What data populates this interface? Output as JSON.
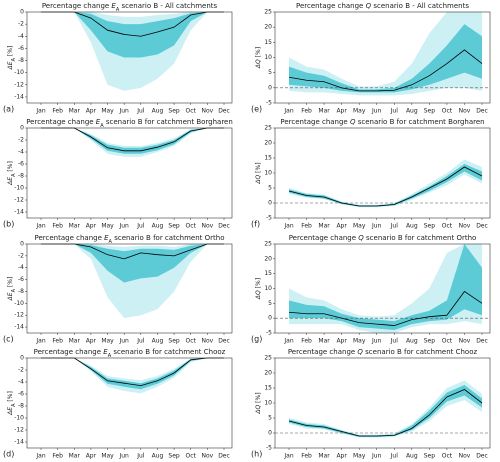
{
  "chart_data": [
    {
      "type": "line",
      "panel": "(a)",
      "title": {
        "pre": "Percentage change ",
        "symbol": "E",
        "sub": "A",
        "post": " scenario B - All catchments"
      },
      "ylabel": {
        "symbol": "ΔE",
        "sub": "A",
        "post": " [%]"
      },
      "categories": [
        "Jan",
        "Feb",
        "Mar",
        "Apr",
        "May",
        "Jun",
        "Jul",
        "Aug",
        "Sep",
        "Oct",
        "Nov",
        "Dec"
      ],
      "values": [
        0,
        0,
        0,
        -1,
        -3,
        -3.7,
        -4,
        -3.3,
        -2.5,
        -0.5,
        0,
        0
      ],
      "inner_band": {
        "lower": [
          0,
          0,
          0,
          -3,
          -6.5,
          -7.5,
          -7.5,
          -7,
          -5.5,
          -1.5,
          0,
          0
        ],
        "upper": [
          0,
          0,
          0,
          -0.3,
          -1.5,
          -2,
          -2,
          -1.5,
          -1,
          -0.2,
          0,
          0
        ]
      },
      "outer_band": {
        "lower": [
          0,
          0,
          0,
          -5,
          -12,
          -13,
          -12.5,
          -11,
          -8.5,
          -3,
          0,
          0
        ],
        "upper": [
          0,
          0,
          0,
          0,
          -0.5,
          -0.8,
          -0.8,
          -0.5,
          -0.3,
          0,
          0,
          0
        ]
      },
      "ylim": [
        -15,
        0
      ],
      "yticks": [
        0,
        -2,
        -4,
        -6,
        -8,
        -10,
        -12,
        -14
      ],
      "color": "#000000",
      "inner_color": "#5ccbd6",
      "outer_color": "#ccf0f4"
    },
    {
      "type": "line",
      "panel": "(b)",
      "title": {
        "pre": "Percentage change ",
        "symbol": "E",
        "sub": "A",
        "post": " scenario B for catchment Borgharen"
      },
      "ylabel": {
        "symbol": "ΔE",
        "sub": "A",
        "post": " [%]"
      },
      "categories": [
        "Jan",
        "Feb",
        "Mar",
        "Apr",
        "May",
        "Jun",
        "Jul",
        "Aug",
        "Sep",
        "Oct",
        "Nov",
        "Dec"
      ],
      "values": [
        0,
        0,
        0,
        -1.5,
        -3.3,
        -3.8,
        -3.8,
        -3.2,
        -2.3,
        -0.5,
        0,
        0
      ],
      "inner_band": {
        "lower": [
          0,
          0,
          0,
          -1.8,
          -3.8,
          -4.3,
          -4.3,
          -3.7,
          -2.7,
          -0.7,
          0,
          0
        ],
        "upper": [
          0,
          0,
          0,
          -1.2,
          -2.8,
          -3.3,
          -3.3,
          -2.8,
          -2,
          -0.3,
          0,
          0
        ]
      },
      "outer_band": {
        "lower": [
          0,
          0,
          0,
          -2,
          -4.3,
          -4.8,
          -4.8,
          -4,
          -3,
          -0.9,
          0,
          0
        ],
        "upper": [
          0,
          0,
          0,
          -1,
          -2.5,
          -3,
          -3,
          -2.5,
          -1.7,
          -0.2,
          0,
          0
        ]
      },
      "ylim": [
        -15,
        0
      ],
      "yticks": [
        0,
        -2,
        -4,
        -6,
        -8,
        -10,
        -12,
        -14
      ],
      "color": "#000000",
      "inner_color": "#5ccbd6",
      "outer_color": "#ccf0f4"
    },
    {
      "type": "line",
      "panel": "(c)",
      "title": {
        "pre": "Percentage change ",
        "symbol": "E",
        "sub": "A",
        "post": " scenario B for catchment Ortho"
      },
      "ylabel": {
        "symbol": "ΔE",
        "sub": "A",
        "post": " [%]"
      },
      "categories": [
        "Jan",
        "Feb",
        "Mar",
        "Apr",
        "May",
        "Jun",
        "Jul",
        "Aug",
        "Sep",
        "Oct",
        "Nov",
        "Dec"
      ],
      "values": [
        0,
        0,
        0,
        -0.5,
        -1.8,
        -2.5,
        -1.5,
        -1.8,
        -2,
        -1,
        0,
        0
      ],
      "inner_band": {
        "lower": [
          0,
          0,
          0,
          -1.5,
          -4.5,
          -6.5,
          -5.8,
          -5.5,
          -4,
          -1.5,
          0,
          0
        ],
        "upper": [
          0,
          0,
          0,
          -0.2,
          -0.8,
          -1.2,
          -0.8,
          -0.8,
          -1,
          -0.3,
          0,
          0
        ]
      },
      "outer_band": {
        "lower": [
          0,
          0,
          0,
          -2.5,
          -9,
          -12.5,
          -12,
          -11,
          -8,
          -3,
          0,
          0
        ],
        "upper": [
          0,
          0,
          0,
          0,
          -0.3,
          -0.5,
          -0.3,
          -0.3,
          -0.5,
          0,
          0,
          0
        ]
      },
      "ylim": [
        -15,
        0
      ],
      "yticks": [
        0,
        -2,
        -4,
        -6,
        -8,
        -10,
        -12,
        -14
      ],
      "color": "#000000",
      "inner_color": "#5ccbd6",
      "outer_color": "#ccf0f4"
    },
    {
      "type": "line",
      "panel": "(d)",
      "title": {
        "pre": "Percentage change ",
        "symbol": "E",
        "sub": "A",
        "post": " scenario B for catchment Chooz"
      },
      "ylabel": {
        "symbol": "ΔE",
        "sub": "A",
        "post": " [%]"
      },
      "categories": [
        "Jan",
        "Feb",
        "Mar",
        "Apr",
        "May",
        "Jun",
        "Jul",
        "Aug",
        "Sep",
        "Oct",
        "Nov",
        "Dec"
      ],
      "values": [
        0,
        0,
        0,
        -1.8,
        -3.8,
        -4.2,
        -4.6,
        -3.8,
        -2.5,
        -0.3,
        0,
        0
      ],
      "inner_band": {
        "lower": [
          0,
          0,
          0,
          -2,
          -4.3,
          -4.8,
          -5.2,
          -4.3,
          -2.9,
          -0.5,
          0,
          0
        ],
        "upper": [
          0,
          0,
          0,
          -1.5,
          -3.4,
          -3.8,
          -4.2,
          -3.4,
          -2.1,
          -0.2,
          0,
          0
        ]
      },
      "outer_band": {
        "lower": [
          0,
          0,
          0,
          -2.2,
          -4.8,
          -5.5,
          -5.9,
          -4.8,
          -3.3,
          -0.7,
          0,
          0
        ],
        "upper": [
          0,
          0,
          0,
          -1.3,
          -3,
          -3.4,
          -3.7,
          -3,
          -1.8,
          -0.1,
          0,
          0
        ]
      },
      "ylim": [
        -15,
        0
      ],
      "yticks": [
        0,
        -2,
        -4,
        -6,
        -8,
        -10,
        -12,
        -14
      ],
      "color": "#000000",
      "inner_color": "#5ccbd6",
      "outer_color": "#ccf0f4"
    },
    {
      "type": "line",
      "panel": "(e)",
      "title": {
        "pre": "Percentage change ",
        "symbol": "Q",
        "post": " scenario B - All catchments"
      },
      "ylabel": {
        "symbol": "ΔQ",
        "post": " [%]"
      },
      "categories": [
        "Jan",
        "Feb",
        "Mar",
        "Apr",
        "May",
        "Jun",
        "Jul",
        "Aug",
        "Sep",
        "Oct",
        "Nov",
        "Dec"
      ],
      "values": [
        3.5,
        2.5,
        2,
        0,
        -1,
        -1,
        -0.8,
        1,
        4,
        8,
        12.5,
        8
      ],
      "inner_band": {
        "lower": [
          1,
          0.5,
          0,
          -1,
          -1.5,
          -1.5,
          -1.5,
          -0.5,
          1,
          3,
          5,
          3
        ],
        "upper": [
          7,
          5,
          4,
          1.5,
          -0.5,
          -0.5,
          0,
          3,
          8,
          14,
          21,
          17
        ]
      },
      "outer_band": {
        "lower": [
          -1,
          -1.5,
          -1.5,
          -2,
          -2.5,
          -2.5,
          -2.5,
          -2,
          -1,
          0,
          0,
          -1
        ],
        "upper": [
          10,
          7,
          6,
          3,
          0.5,
          0.5,
          2,
          8,
          18,
          25,
          25,
          25
        ]
      },
      "ylim": [
        -5,
        25
      ],
      "yticks": [
        -5,
        0,
        5,
        10,
        15,
        20,
        25
      ],
      "reference_line": 0,
      "color": "#000000",
      "inner_color": "#5ccbd6",
      "outer_color": "#ccf0f4"
    },
    {
      "type": "line",
      "panel": "(f)",
      "title": {
        "pre": "Percentage change ",
        "symbol": "Q",
        "post": " scenario B for catchment Borgharen"
      },
      "ylabel": {
        "symbol": "ΔQ",
        "post": " [%]"
      },
      "categories": [
        "Jan",
        "Feb",
        "Mar",
        "Apr",
        "May",
        "Jun",
        "Jul",
        "Aug",
        "Sep",
        "Oct",
        "Nov",
        "Dec"
      ],
      "values": [
        4,
        2.5,
        2,
        0,
        -1,
        -1,
        -0.5,
        2,
        5,
        8,
        12,
        9
      ],
      "inner_band": {
        "lower": [
          3.5,
          2,
          1.5,
          -0.3,
          -1.2,
          -1.2,
          -0.8,
          1.5,
          4,
          7,
          10.5,
          7.5
        ],
        "upper": [
          4.5,
          3,
          2.5,
          0.3,
          -0.8,
          -0.8,
          -0.2,
          2.5,
          5.5,
          9,
          13,
          10.5
        ]
      },
      "outer_band": {
        "lower": [
          3,
          1.8,
          1.3,
          -0.5,
          -1.4,
          -1.4,
          -1,
          1,
          3.5,
          6,
          9.5,
          6.5
        ],
        "upper": [
          5,
          3.3,
          2.8,
          0.5,
          -0.6,
          -0.6,
          0,
          3,
          6.5,
          10,
          14.5,
          12
        ]
      },
      "ylim": [
        -5,
        25
      ],
      "yticks": [
        -5,
        0,
        5,
        10,
        15,
        20,
        25
      ],
      "reference_line": 0,
      "color": "#000000",
      "inner_color": "#5ccbd6",
      "outer_color": "#ccf0f4"
    },
    {
      "type": "line",
      "panel": "(g)",
      "title": {
        "pre": "Percentage change ",
        "symbol": "Q",
        "post": " scenario B for catchment Ortho"
      },
      "ylabel": {
        "symbol": "ΔQ",
        "post": " [%]"
      },
      "categories": [
        "Jan",
        "Feb",
        "Mar",
        "Apr",
        "May",
        "Jun",
        "Jul",
        "Aug",
        "Sep",
        "Oct",
        "Nov",
        "Dec"
      ],
      "values": [
        2,
        1.5,
        1.5,
        0,
        -1.5,
        -2,
        -2.5,
        -0.5,
        0.5,
        1,
        9,
        5
      ],
      "inner_band": {
        "lower": [
          0,
          0,
          0,
          -1,
          -3,
          -3.5,
          -4,
          -2,
          -1,
          -0.5,
          3,
          1
        ],
        "upper": [
          6,
          4.5,
          4,
          1.5,
          0,
          -0.5,
          -1,
          1,
          2.5,
          6,
          25,
          17
        ]
      },
      "outer_band": {
        "lower": [
          -2,
          -2,
          -2,
          -2,
          -4,
          -5,
          -5,
          -3,
          -2,
          -2,
          -1,
          -2
        ],
        "upper": [
          10,
          7,
          6,
          3,
          1,
          0.5,
          1,
          5,
          10,
          22,
          25,
          25
        ]
      },
      "ylim": [
        -5,
        25
      ],
      "yticks": [
        -5,
        0,
        5,
        10,
        15,
        20,
        25
      ],
      "reference_line": 0,
      "color": "#000000",
      "inner_color": "#5ccbd6",
      "outer_color": "#ccf0f4"
    },
    {
      "type": "line",
      "panel": "(h)",
      "title": {
        "pre": "Percentage change ",
        "symbol": "Q",
        "post": " scenario B for catchment Chooz"
      },
      "ylabel": {
        "symbol": "ΔQ",
        "post": " [%]"
      },
      "categories": [
        "Jan",
        "Feb",
        "Mar",
        "Apr",
        "May",
        "Jun",
        "Jul",
        "Aug",
        "Sep",
        "Oct",
        "Nov",
        "Dec"
      ],
      "values": [
        4,
        2.5,
        2,
        0.5,
        -1,
        -1,
        -0.8,
        1.5,
        6,
        12,
        14.5,
        10
      ],
      "inner_band": {
        "lower": [
          3.5,
          2,
          1.5,
          0,
          -1.3,
          -1.3,
          -1,
          1,
          5,
          10.5,
          12.5,
          8.5
        ],
        "upper": [
          4.5,
          3,
          2.5,
          0.8,
          -0.8,
          -0.8,
          -0.5,
          2.5,
          7.5,
          13.5,
          16,
          11.5
        ]
      },
      "outer_band": {
        "lower": [
          3,
          1.5,
          1.2,
          -0.2,
          -1.5,
          -1.5,
          -1.3,
          0.5,
          4,
          9,
          11,
          7
        ],
        "upper": [
          5,
          3.5,
          3,
          1,
          -0.6,
          -0.6,
          -0.2,
          3,
          8.5,
          15,
          17.5,
          13
        ]
      },
      "ylim": [
        -5,
        25
      ],
      "yticks": [
        -5,
        0,
        5,
        10,
        15,
        20,
        25
      ],
      "reference_line": 0,
      "color": "#000000",
      "inner_color": "#5ccbd6",
      "outer_color": "#ccf0f4"
    }
  ]
}
